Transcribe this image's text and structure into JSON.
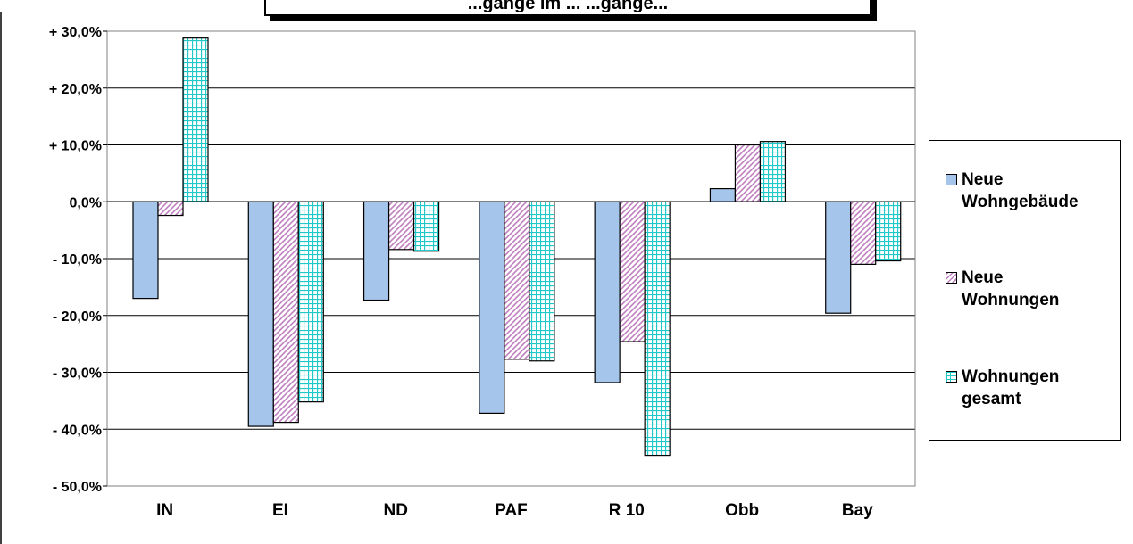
{
  "chart_data": {
    "type": "bar",
    "title": "...gänge im ... ...gänge...",
    "xlabel": "",
    "ylabel": "",
    "categories": [
      "IN",
      "EI",
      "ND",
      "PAF",
      "R 10",
      "Obb",
      "Bay"
    ],
    "ylim": [
      -50,
      30
    ],
    "yticks": [
      30,
      20,
      10,
      0,
      -10,
      -20,
      -30,
      -40,
      -50
    ],
    "ytick_labels": [
      "+ 30,0%",
      "+ 20,0%",
      "+ 10,0%",
      "0,0%",
      "- 10,0%",
      "- 20,0%",
      "- 30,0%",
      "- 40,0%",
      "- 50,0%"
    ],
    "grid": true,
    "legend_position": "right",
    "series": [
      {
        "name": "Neue Wohngebäude",
        "values": [
          -17.0,
          -39.5,
          -17.3,
          -37.2,
          -31.8,
          2.3,
          -19.6
        ],
        "color": "#a6c5ea",
        "pattern": "solid"
      },
      {
        "name": "Neue Wohnungen",
        "values": [
          -2.4,
          -38.8,
          -8.4,
          -27.7,
          -24.6,
          10.0,
          -11.0
        ],
        "color": "#d9a6d9",
        "pattern": "diagonal"
      },
      {
        "name": "Wohnungen gesamt",
        "values": [
          28.8,
          -35.2,
          -8.7,
          -28.0,
          -44.6,
          10.6,
          -10.4
        ],
        "color": "#40d0d0",
        "pattern": "grid"
      }
    ]
  },
  "legend": {
    "items": [
      {
        "label": "Neue\nWohngebäude"
      },
      {
        "label": "Neue\nWohnungen"
      },
      {
        "label": "Wohnungen\ngesamt"
      }
    ]
  }
}
